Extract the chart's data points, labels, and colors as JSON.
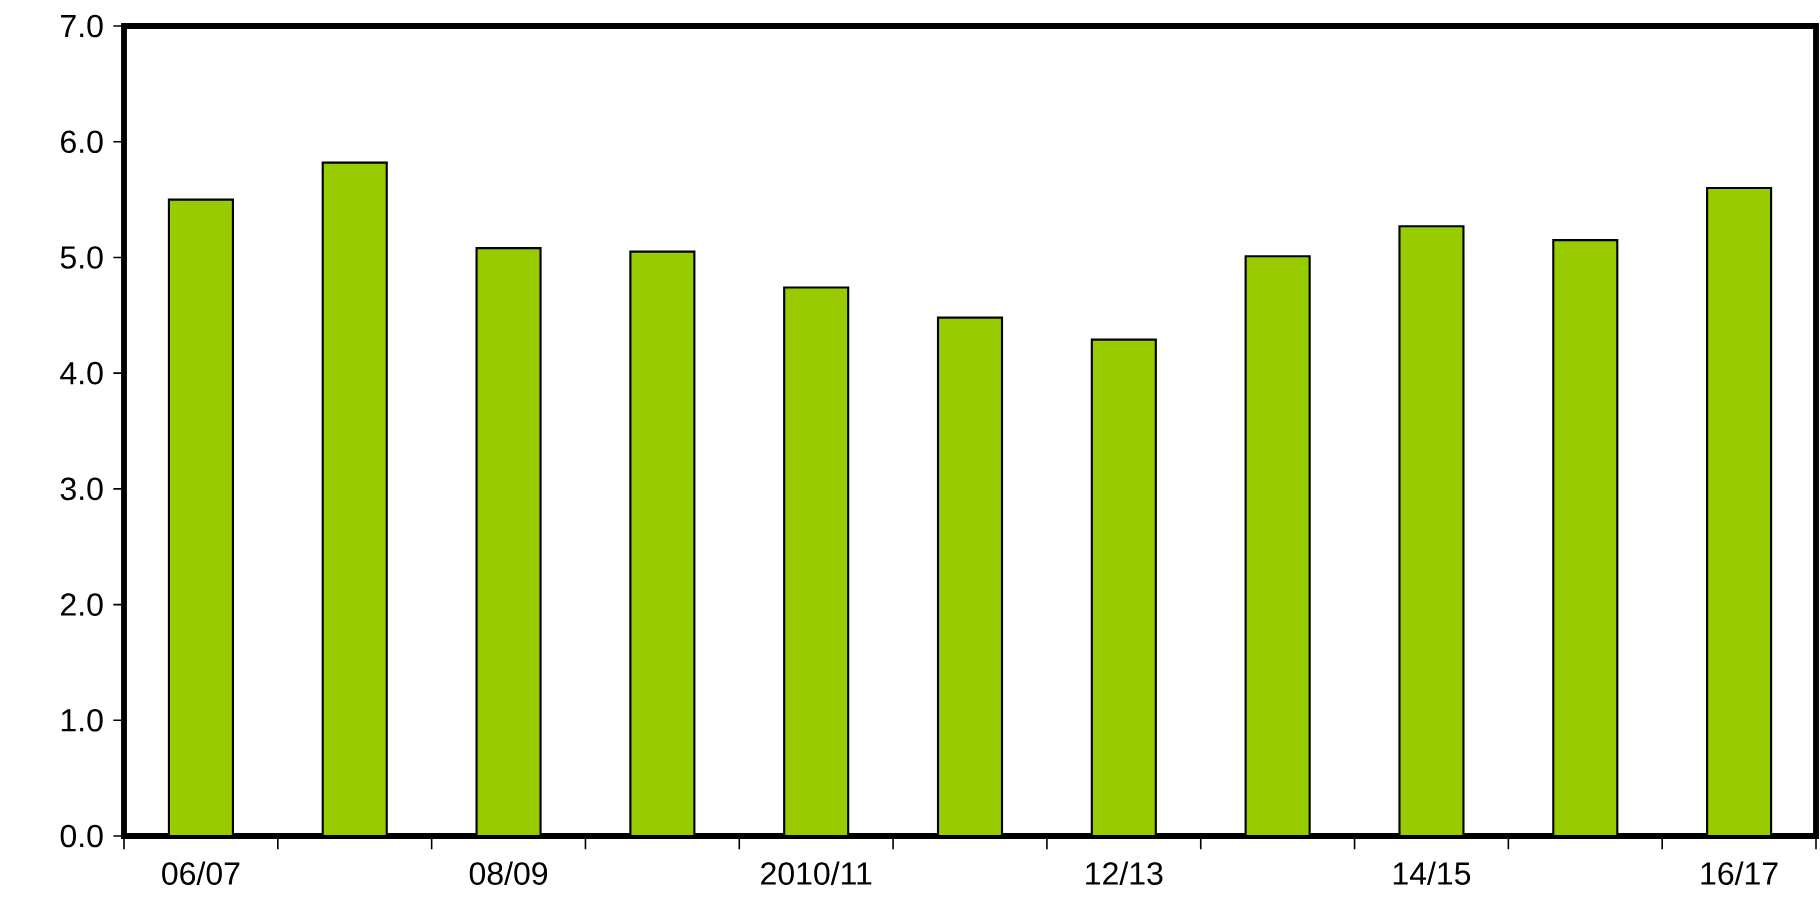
{
  "chart_data": {
    "type": "bar",
    "categories": [
      "06/07",
      null,
      "08/09",
      null,
      "2010/11",
      null,
      "12/13",
      null,
      "14/15",
      null,
      "16/17"
    ],
    "values": [
      5.5,
      5.82,
      5.08,
      5.05,
      4.74,
      4.48,
      4.29,
      5.01,
      5.27,
      5.15,
      5.6
    ],
    "color": "#99cc00",
    "ylim": [
      0,
      7
    ],
    "yticks": [
      {
        "value": 0,
        "label": "0.0"
      },
      {
        "value": 1,
        "label": "1.0"
      },
      {
        "value": 2,
        "label": "2.0"
      },
      {
        "value": 3,
        "label": "3.0"
      },
      {
        "value": 4,
        "label": "4.0"
      },
      {
        "value": 5,
        "label": "5.0"
      },
      {
        "value": 6,
        "label": "6.0"
      },
      {
        "value": 7,
        "label": "7.0"
      }
    ],
    "grid": false
  }
}
